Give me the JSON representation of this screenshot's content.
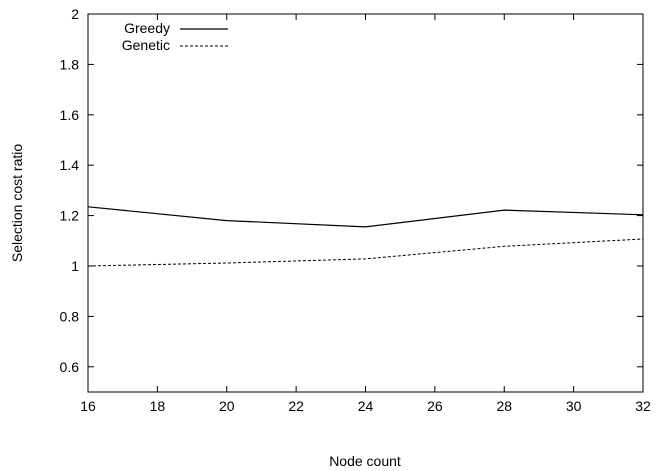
{
  "chart_data": {
    "type": "line",
    "xlabel": "Node count",
    "ylabel": "Selection cost ratio",
    "xlim": [
      16,
      32
    ],
    "ylim": [
      0.5,
      2
    ],
    "xticks": [
      16,
      18,
      20,
      22,
      24,
      26,
      28,
      30,
      32
    ],
    "yticks": [
      0.6,
      0.8,
      1,
      1.2,
      1.4,
      1.6,
      1.8,
      2
    ],
    "x": [
      16,
      20,
      24,
      28,
      32
    ],
    "series": [
      {
        "name": "Greedy",
        "style": "solid",
        "values": [
          1.235,
          1.18,
          1.155,
          1.222,
          1.203
        ]
      },
      {
        "name": "Genetic",
        "style": "dashed",
        "values": [
          1.0,
          1.012,
          1.028,
          1.078,
          1.107
        ]
      }
    ],
    "legend_position": "top-left",
    "grid": false
  }
}
